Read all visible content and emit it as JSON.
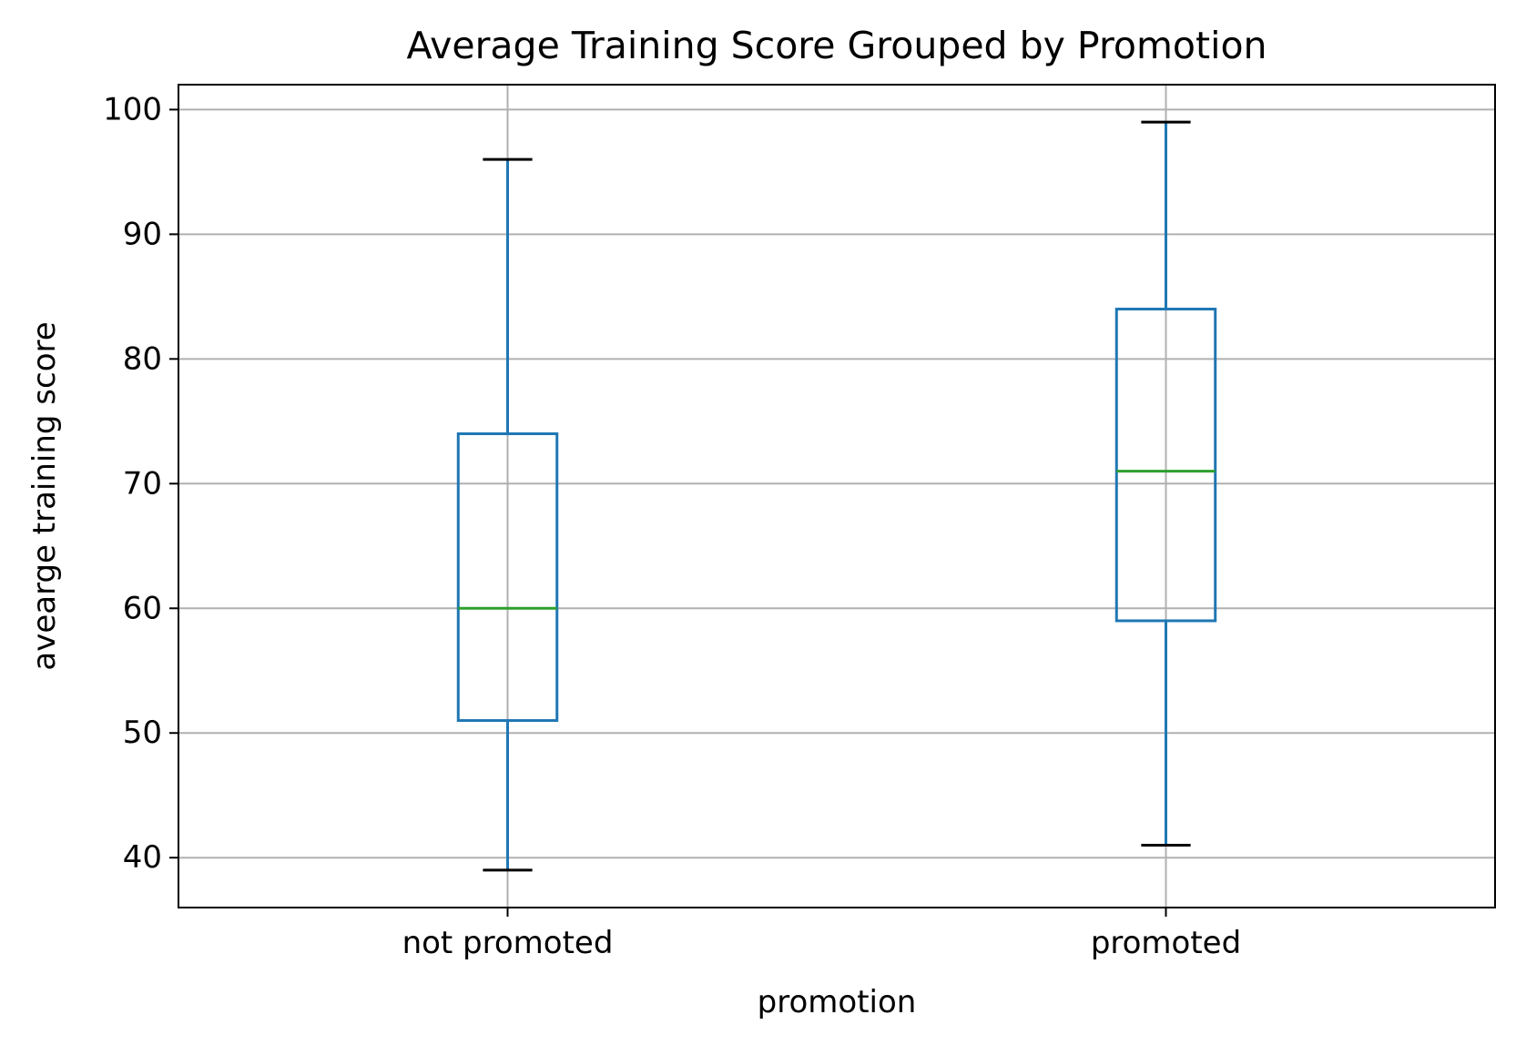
{
  "chart_data": {
    "type": "box",
    "title": "Average Training Score Grouped by Promotion",
    "xlabel": "promotion",
    "ylabel": "avearge training score",
    "categories": [
      "not promoted",
      "promoted"
    ],
    "boxes": [
      {
        "category": "not promoted",
        "whisker_low": 39,
        "q1": 51,
        "median": 60,
        "q3": 74,
        "whisker_high": 96
      },
      {
        "category": "promoted",
        "whisker_low": 41,
        "q1": 59,
        "median": 71,
        "q3": 84,
        "whisker_high": 99
      }
    ],
    "ylim": [
      36.0,
      102.0
    ],
    "yticks": [
      40,
      50,
      60,
      70,
      80,
      90,
      100
    ],
    "grid": true,
    "colors": {
      "box": "#1f77b4",
      "median": "#2ca02c",
      "caps": "#000000",
      "grid": "#b0b0b0"
    }
  }
}
